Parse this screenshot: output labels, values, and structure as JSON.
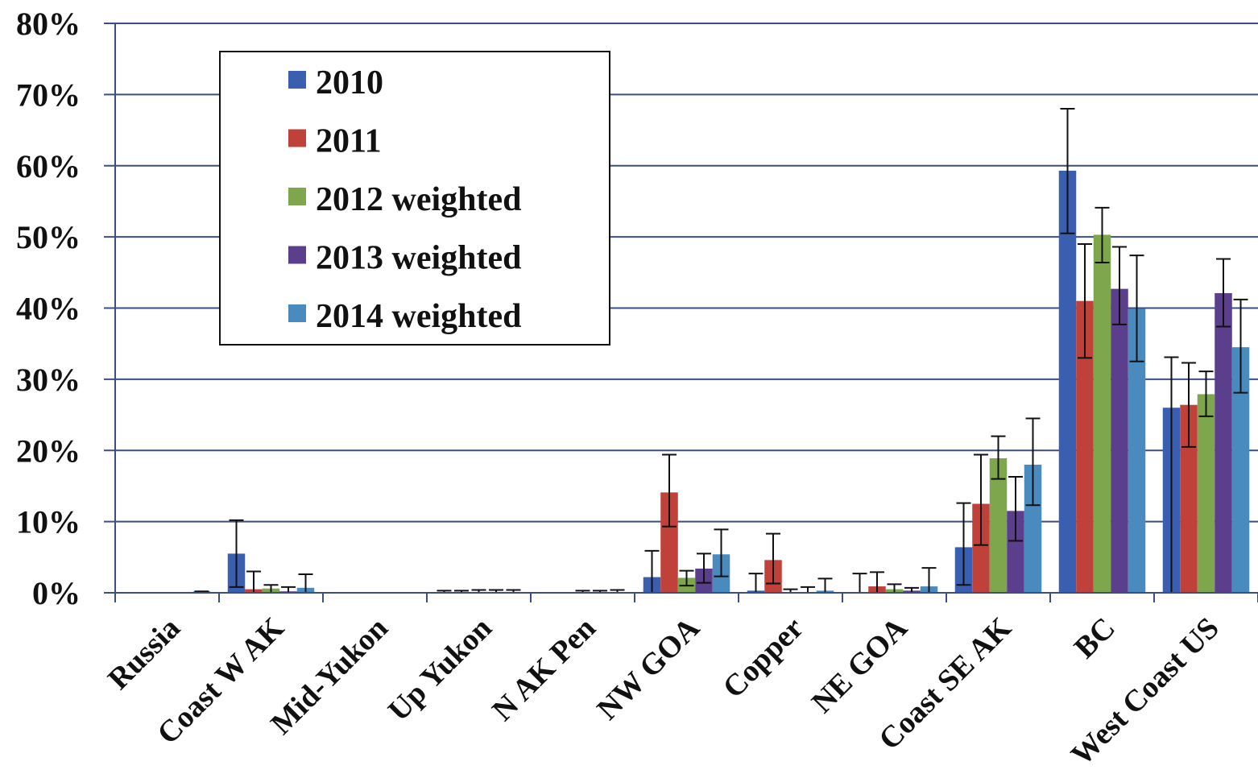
{
  "chart_data": {
    "type": "bar",
    "title": "",
    "xlabel": "",
    "ylabel": "",
    "ylim": [
      0,
      80
    ],
    "y_ticks": [
      "0%",
      "10%",
      "20%",
      "30%",
      "40%",
      "50%",
      "60%",
      "70%",
      "80%"
    ],
    "grid": true,
    "legend_position": "top-left",
    "categories": [
      "Russia",
      "Coast W AK",
      "Mid-Yukon",
      "Up Yukon",
      "N AK Pen",
      "NW GOA",
      "Copper",
      "NE GOA",
      "Coast SE AK",
      "BC",
      "West Coast US"
    ],
    "series": [
      {
        "name": "2010",
        "color": "#3a5fb0",
        "values": [
          0,
          5.5,
          0,
          0,
          0,
          2.2,
          0.3,
          0,
          6.4,
          59.3,
          26.0
        ],
        "error_low": [
          0,
          0.8,
          0,
          0,
          0,
          0,
          0,
          0,
          1.1,
          50.5,
          0
        ],
        "error_high": [
          0,
          10.2,
          0,
          0.3,
          0,
          5.9,
          2.7,
          2.7,
          12.6,
          68.0,
          33.1
        ]
      },
      {
        "name": "2011",
        "color": "#c0413a",
        "values": [
          0,
          0.5,
          0,
          0,
          0,
          14.1,
          4.6,
          0.9,
          12.5,
          41.0,
          26.4
        ],
        "error_low": [
          0,
          0,
          0,
          0,
          0,
          9.3,
          1.3,
          0,
          6.7,
          33.0,
          20.5
        ],
        "error_high": [
          0,
          3.0,
          0,
          0.3,
          0,
          19.4,
          8.3,
          2.9,
          19.4,
          49.0,
          32.3
        ]
      },
      {
        "name": "2012 weighted",
        "color": "#7ea64d",
        "values": [
          0,
          0.6,
          0,
          0,
          0,
          2.1,
          0.1,
          0.5,
          18.9,
          50.3,
          27.9
        ],
        "error_low": [
          0,
          0,
          0,
          0,
          0,
          1.0,
          0,
          0,
          16.0,
          46.4,
          24.8
        ],
        "error_high": [
          0,
          1.1,
          0,
          0.4,
          0.3,
          3.1,
          0.5,
          1.2,
          22.0,
          54.1,
          31.1
        ]
      },
      {
        "name": "2013 weighted",
        "color": "#5b3f8c",
        "values": [
          0,
          0.2,
          0,
          0,
          0,
          3.4,
          0.1,
          0.3,
          11.5,
          42.7,
          42.1
        ],
        "error_low": [
          0,
          0,
          0,
          0,
          0,
          1.4,
          0,
          0,
          7.3,
          37.7,
          37.4
        ],
        "error_high": [
          0,
          0.8,
          0,
          0.4,
          0.3,
          5.5,
          0.8,
          0.7,
          16.3,
          48.6,
          46.9
        ]
      },
      {
        "name": "2014 weighted",
        "color": "#4a8bbf",
        "values": [
          0.2,
          0.7,
          0,
          0,
          0,
          5.4,
          0.3,
          0.9,
          18.0,
          39.9,
          34.5
        ],
        "error_low": [
          0,
          0,
          0,
          0,
          0,
          2.3,
          0,
          0,
          12.3,
          32.5,
          28.1
        ],
        "error_high": [
          0.2,
          2.6,
          0,
          0.4,
          0.4,
          8.9,
          2.0,
          3.5,
          24.5,
          47.4,
          41.2
        ]
      }
    ]
  }
}
